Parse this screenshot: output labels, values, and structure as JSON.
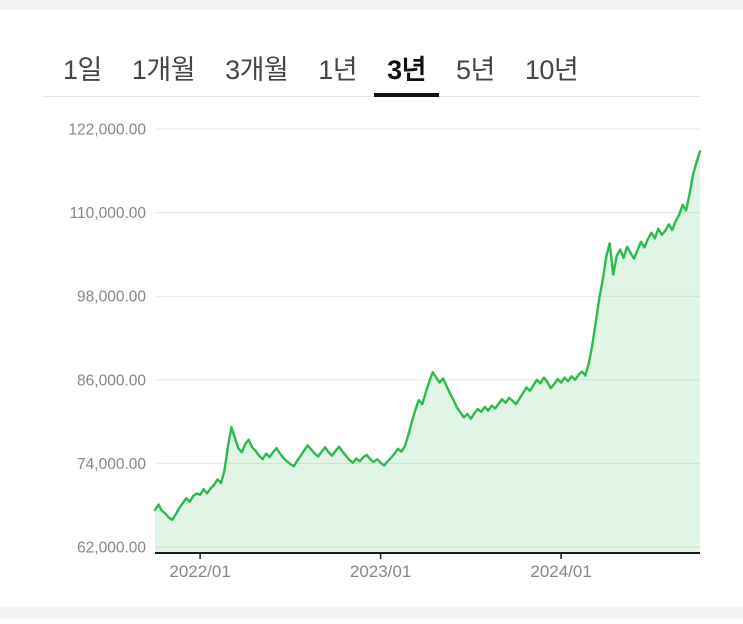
{
  "page": {
    "background": "#ffffff",
    "edge_strip_color": "#f4f4f4"
  },
  "tabs": {
    "items": [
      {
        "label": "1일",
        "active": false
      },
      {
        "label": "1개월",
        "active": false
      },
      {
        "label": "3개월",
        "active": false
      },
      {
        "label": "1년",
        "active": false
      },
      {
        "label": "3년",
        "active": true
      },
      {
        "label": "5년",
        "active": false
      },
      {
        "label": "10년",
        "active": false
      }
    ],
    "active_underline_color": "#111111"
  },
  "chart_data": {
    "type": "area",
    "title": "",
    "xlabel": "",
    "ylabel": "",
    "line_color": "#2eb94e",
    "fill_color": "rgba(46,185,78,0.15)",
    "grid_color": "#e7e7e7",
    "axis_color": "#1c1c1c",
    "label_color": "#878787",
    "grid": true,
    "legend": false,
    "ylim": [
      62000,
      122000
    ],
    "y_ticks": [
      {
        "value": 122000,
        "label": "122,000.00"
      },
      {
        "value": 110000,
        "label": "110,000.00"
      },
      {
        "value": 98000,
        "label": "98,000.00"
      },
      {
        "value": 86000,
        "label": "86,000.00"
      },
      {
        "value": 74000,
        "label": "74,000.00"
      },
      {
        "value": 62000,
        "label": "62,000.00"
      }
    ],
    "x_ticks": [
      {
        "index": 13,
        "label": "2022/01"
      },
      {
        "index": 65,
        "label": "2023/01"
      },
      {
        "index": 117,
        "label": "2024/01"
      }
    ],
    "x_description": "weekly points from 2021/10 to 2024/10",
    "values": [
      67300,
      68100,
      67200,
      66800,
      66200,
      65900,
      66700,
      67600,
      68300,
      69000,
      68500,
      69300,
      69700,
      69500,
      70300,
      69700,
      70400,
      70900,
      71700,
      71200,
      72900,
      76400,
      79200,
      77700,
      76200,
      75600,
      76800,
      77400,
      76300,
      75800,
      75100,
      74600,
      75400,
      74900,
      75600,
      76200,
      75400,
      74800,
      74300,
      73900,
      73600,
      74400,
      75100,
      75900,
      76600,
      76000,
      75400,
      75000,
      75700,
      76300,
      75600,
      75100,
      75800,
      76400,
      75700,
      75100,
      74500,
      74100,
      74700,
      74300,
      74900,
      75200,
      74600,
      74200,
      74600,
      74100,
      73700,
      74300,
      74800,
      75400,
      76100,
      75700,
      76500,
      78100,
      80000,
      81700,
      83100,
      82500,
      84200,
      85700,
      87100,
      86300,
      85600,
      86200,
      85100,
      84000,
      83100,
      82000,
      81300,
      80600,
      81100,
      80400,
      81200,
      81800,
      81400,
      82100,
      81600,
      82300,
      81900,
      82600,
      83200,
      82700,
      83400,
      83000,
      82500,
      83300,
      84100,
      84900,
      84400,
      85200,
      86000,
      85500,
      86300,
      85700,
      84800,
      85400,
      86100,
      85600,
      86300,
      85800,
      86500,
      86000,
      86700,
      87200,
      86600,
      88400,
      91100,
      94400,
      97700,
      100400,
      103700,
      105600,
      101100,
      103800,
      104700,
      103500,
      105100,
      104200,
      103400,
      104600,
      105800,
      105000,
      106200,
      107100,
      106300,
      107700,
      106800,
      107400,
      108300,
      107500,
      108800,
      109700,
      111100,
      110300,
      112700,
      115500,
      117200,
      118800
    ]
  }
}
